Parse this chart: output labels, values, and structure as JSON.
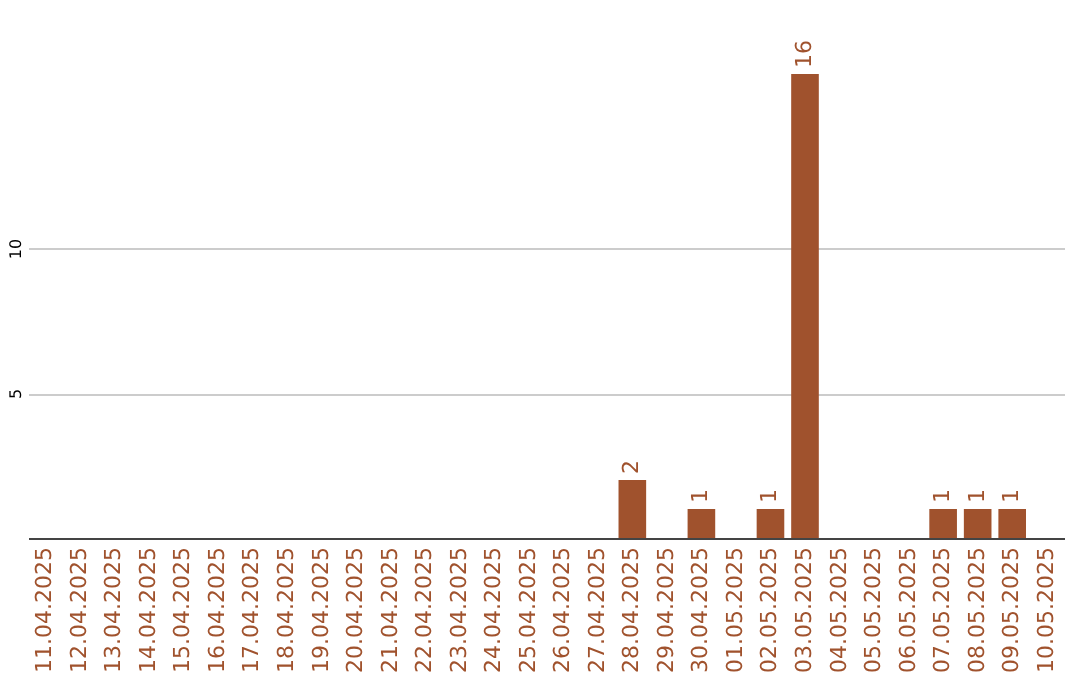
{
  "chart_data": {
    "type": "bar",
    "categories": [
      "11.04.2025",
      "12.04.2025",
      "13.04.2025",
      "14.04.2025",
      "15.04.2025",
      "16.04.2025",
      "17.04.2025",
      "18.04.2025",
      "19.04.2025",
      "20.04.2025",
      "21.04.2025",
      "22.04.2025",
      "23.04.2025",
      "24.04.2025",
      "25.04.2025",
      "26.04.2025",
      "27.04.2025",
      "28.04.2025",
      "29.04.2025",
      "30.04.2025",
      "01.05.2025",
      "02.05.2025",
      "03.05.2025",
      "04.05.2025",
      "05.05.2025",
      "06.05.2025",
      "07.05.2025",
      "08.05.2025",
      "09.05.2025",
      "10.05.2025"
    ],
    "values": [
      0,
      0,
      0,
      0,
      0,
      0,
      0,
      0,
      0,
      0,
      0,
      0,
      0,
      0,
      0,
      0,
      0,
      2,
      0,
      1,
      0,
      1,
      16,
      0,
      0,
      0,
      1,
      1,
      1,
      0
    ],
    "value_labels": [
      null,
      null,
      null,
      null,
      null,
      null,
      null,
      null,
      null,
      null,
      null,
      null,
      null,
      null,
      null,
      null,
      null,
      "2",
      null,
      "1",
      null,
      "1",
      "16",
      null,
      null,
      null,
      "1",
      "1",
      "1",
      null
    ],
    "color": "#a0522d",
    "ylim": [
      0,
      16
    ],
    "yticks": [
      5,
      10
    ],
    "grid": "y"
  }
}
